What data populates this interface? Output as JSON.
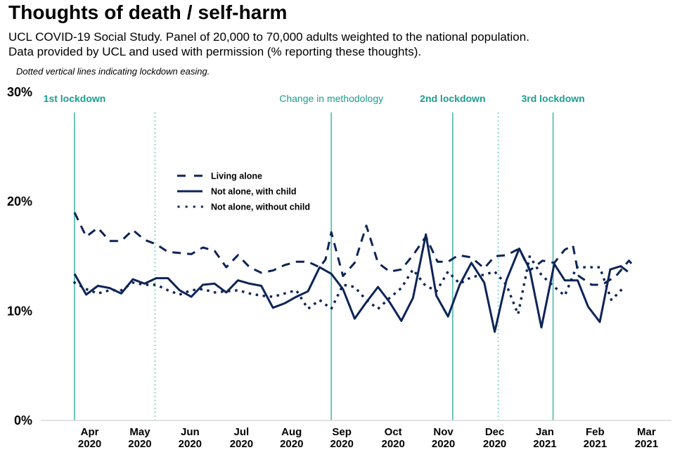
{
  "header": {
    "title": "Thoughts of death / self-harm",
    "subtitle_line1": "UCL COVID-19 Social Study. Panel of 20,000 to 70,000 adults weighted to the national population.",
    "subtitle_line2": "Data provided by UCL and used with permission (% reporting these thoughts).",
    "note": "Dotted vertical lines indicating lockdown easing."
  },
  "colors": {
    "series": "#0d2457",
    "event_line": "#5bbfb3",
    "event_label": "#1a9e8f",
    "axis": "#d9d9d9"
  },
  "chart_data": {
    "type": "line",
    "title": "Thoughts of death / self-harm",
    "xlabel": "",
    "ylabel": "% reporting these thoughts",
    "x_unit": "weeks since 23 Mar 2020",
    "xlim": [
      -1.3,
      49.2
    ],
    "ylim": [
      0,
      30
    ],
    "grid": false,
    "yticks": [
      {
        "value": 0,
        "label": "0%"
      },
      {
        "value": 10,
        "label": "10%"
      },
      {
        "value": 20,
        "label": "20%"
      },
      {
        "value": 30,
        "label": "30%"
      }
    ],
    "xticks": [
      {
        "value": 1.3,
        "month": "Apr",
        "year": "2020"
      },
      {
        "value": 5.6,
        "month": "May",
        "year": "2020"
      },
      {
        "value": 9.9,
        "month": "Jun",
        "year": "2020"
      },
      {
        "value": 14.3,
        "month": "Jul",
        "year": "2020"
      },
      {
        "value": 18.6,
        "month": "Aug",
        "year": "2020"
      },
      {
        "value": 22.9,
        "month": "Sep",
        "year": "2020"
      },
      {
        "value": 27.3,
        "month": "Oct",
        "year": "2020"
      },
      {
        "value": 31.6,
        "month": "Nov",
        "year": "2020"
      },
      {
        "value": 36.0,
        "month": "Dec",
        "year": "2020"
      },
      {
        "value": 40.3,
        "month": "Jan",
        "year": "2021"
      },
      {
        "value": 44.6,
        "month": "Feb",
        "year": "2021"
      },
      {
        "value": 49.0,
        "month": "Mar",
        "year": "2021"
      }
    ],
    "events": [
      {
        "x": 0.0,
        "label": "1st lockdown",
        "style": "solid",
        "bold": true
      },
      {
        "x": 6.9,
        "label": "",
        "style": "dotted"
      },
      {
        "x": 22.0,
        "label": "Change in methodology",
        "style": "solid",
        "bold": false
      },
      {
        "x": 32.4,
        "label": "2nd lockdown",
        "style": "solid",
        "bold": true
      },
      {
        "x": 36.3,
        "label": "",
        "style": "dotted"
      },
      {
        "x": 41.0,
        "label": "3rd lockdown",
        "style": "solid",
        "bold": true
      }
    ],
    "legend": {
      "position": "upper-left-center",
      "entries": [
        {
          "name": "Living alone",
          "dash": "dashed"
        },
        {
          "name": "Not alone, with child",
          "dash": "solid"
        },
        {
          "name": "Not alone, without child",
          "dash": "dotted"
        }
      ]
    },
    "series": [
      {
        "name": "Living alone",
        "dash": "dashed",
        "points": [
          [
            0.0,
            19.0
          ],
          [
            1.0,
            16.8
          ],
          [
            2.0,
            17.6
          ],
          [
            3.0,
            16.4
          ],
          [
            4.0,
            16.4
          ],
          [
            5.0,
            17.4
          ],
          [
            6.0,
            16.5
          ],
          [
            7.0,
            16.1
          ],
          [
            8.0,
            15.4
          ],
          [
            9.0,
            15.3
          ],
          [
            10.0,
            15.2
          ],
          [
            11.0,
            15.8
          ],
          [
            12.0,
            15.5
          ],
          [
            13.0,
            14.0
          ],
          [
            14.0,
            15.1
          ],
          [
            15.0,
            14.0
          ],
          [
            16.0,
            13.5
          ],
          [
            17.0,
            13.7
          ],
          [
            18.0,
            14.2
          ],
          [
            19.0,
            14.5
          ],
          [
            20.0,
            14.5
          ],
          [
            21.0,
            14.0
          ],
          [
            21.5,
            14.7
          ],
          [
            22.0,
            17.2
          ],
          [
            23.0,
            13.2
          ],
          [
            24.0,
            14.4
          ],
          [
            25.0,
            17.8
          ],
          [
            26.0,
            14.4
          ],
          [
            27.0,
            13.6
          ],
          [
            28.0,
            13.8
          ],
          [
            29.0,
            15.1
          ],
          [
            30.1,
            16.8
          ],
          [
            31.1,
            14.5
          ],
          [
            32.0,
            14.5
          ],
          [
            32.9,
            15.1
          ],
          [
            34.0,
            14.9
          ],
          [
            35.1,
            13.9
          ],
          [
            36.0,
            15.0
          ],
          [
            37.0,
            15.1
          ],
          [
            38.1,
            15.7
          ],
          [
            39.0,
            13.7
          ],
          [
            40.1,
            14.6
          ],
          [
            41.1,
            14.4
          ],
          [
            42.0,
            15.6
          ],
          [
            42.7,
            16.0
          ],
          [
            43.2,
            13.2
          ],
          [
            44.3,
            12.4
          ],
          [
            45.2,
            12.4
          ],
          [
            46.4,
            13.2
          ],
          [
            47.5,
            14.6
          ],
          [
            48.0,
            14.0
          ]
        ]
      },
      {
        "name": "Not alone, with child",
        "dash": "solid",
        "points": [
          [
            0.0,
            13.4
          ],
          [
            1.0,
            11.5
          ],
          [
            2.0,
            12.3
          ],
          [
            3.0,
            12.1
          ],
          [
            4.0,
            11.6
          ],
          [
            5.0,
            12.9
          ],
          [
            6.0,
            12.5
          ],
          [
            7.0,
            13.0
          ],
          [
            8.0,
            13.0
          ],
          [
            9.0,
            11.9
          ],
          [
            10.0,
            11.3
          ],
          [
            11.0,
            12.4
          ],
          [
            12.0,
            12.5
          ],
          [
            13.0,
            11.7
          ],
          [
            14.0,
            12.8
          ],
          [
            15.0,
            12.5
          ],
          [
            16.0,
            12.3
          ],
          [
            17.0,
            10.3
          ],
          [
            18.0,
            10.7
          ],
          [
            19.0,
            11.3
          ],
          [
            20.0,
            11.8
          ],
          [
            21.0,
            14.0
          ],
          [
            22.0,
            13.4
          ],
          [
            23.0,
            12.0
          ],
          [
            24.0,
            9.3
          ],
          [
            25.0,
            10.8
          ],
          [
            26.0,
            12.2
          ],
          [
            27.0,
            10.8
          ],
          [
            28.0,
            9.1
          ],
          [
            29.0,
            11.2
          ],
          [
            30.1,
            17.0
          ],
          [
            31.0,
            11.4
          ],
          [
            32.0,
            9.5
          ],
          [
            33.0,
            12.4
          ],
          [
            34.0,
            14.4
          ],
          [
            35.1,
            12.6
          ],
          [
            36.0,
            8.1
          ],
          [
            37.0,
            12.8
          ],
          [
            38.1,
            15.7
          ],
          [
            39.0,
            13.8
          ],
          [
            40.0,
            8.5
          ],
          [
            41.1,
            14.3
          ],
          [
            42.0,
            12.8
          ],
          [
            43.1,
            12.8
          ],
          [
            44.0,
            10.4
          ],
          [
            45.0,
            9.0
          ],
          [
            45.9,
            13.8
          ],
          [
            46.8,
            14.1
          ],
          [
            47.4,
            13.6
          ]
        ]
      },
      {
        "name": "Not alone, without child",
        "dash": "dotted",
        "points": [
          [
            0.0,
            12.6
          ],
          [
            1.0,
            12.0
          ],
          [
            2.0,
            11.6
          ],
          [
            3.0,
            11.9
          ],
          [
            4.0,
            11.9
          ],
          [
            5.0,
            12.6
          ],
          [
            6.0,
            12.4
          ],
          [
            7.0,
            12.4
          ],
          [
            8.0,
            11.9
          ],
          [
            9.0,
            11.5
          ],
          [
            10.0,
            11.9
          ],
          [
            11.0,
            12.0
          ],
          [
            12.0,
            11.7
          ],
          [
            13.0,
            11.8
          ],
          [
            14.0,
            11.9
          ],
          [
            15.0,
            11.6
          ],
          [
            16.0,
            11.4
          ],
          [
            17.0,
            11.3
          ],
          [
            18.0,
            11.6
          ],
          [
            19.0,
            11.9
          ],
          [
            20.0,
            10.2
          ],
          [
            21.0,
            11.0
          ],
          [
            22.0,
            10.2
          ],
          [
            23.0,
            12.4
          ],
          [
            24.0,
            12.2
          ],
          [
            25.0,
            11.0
          ],
          [
            26.0,
            10.2
          ],
          [
            27.0,
            11.2
          ],
          [
            28.0,
            12.1
          ],
          [
            29.0,
            13.8
          ],
          [
            30.0,
            12.4
          ],
          [
            31.0,
            11.8
          ],
          [
            32.0,
            13.6
          ],
          [
            33.0,
            12.5
          ],
          [
            34.0,
            13.1
          ],
          [
            35.0,
            13.3
          ],
          [
            36.0,
            13.6
          ],
          [
            37.0,
            12.4
          ],
          [
            38.0,
            9.7
          ],
          [
            39.0,
            15.0
          ],
          [
            40.0,
            13.3
          ],
          [
            41.0,
            12.3
          ],
          [
            42.0,
            11.4
          ],
          [
            43.0,
            14.0
          ],
          [
            44.0,
            14.0
          ],
          [
            45.0,
            14.0
          ],
          [
            46.0,
            11.0
          ],
          [
            47.0,
            12.1
          ]
        ]
      }
    ]
  }
}
